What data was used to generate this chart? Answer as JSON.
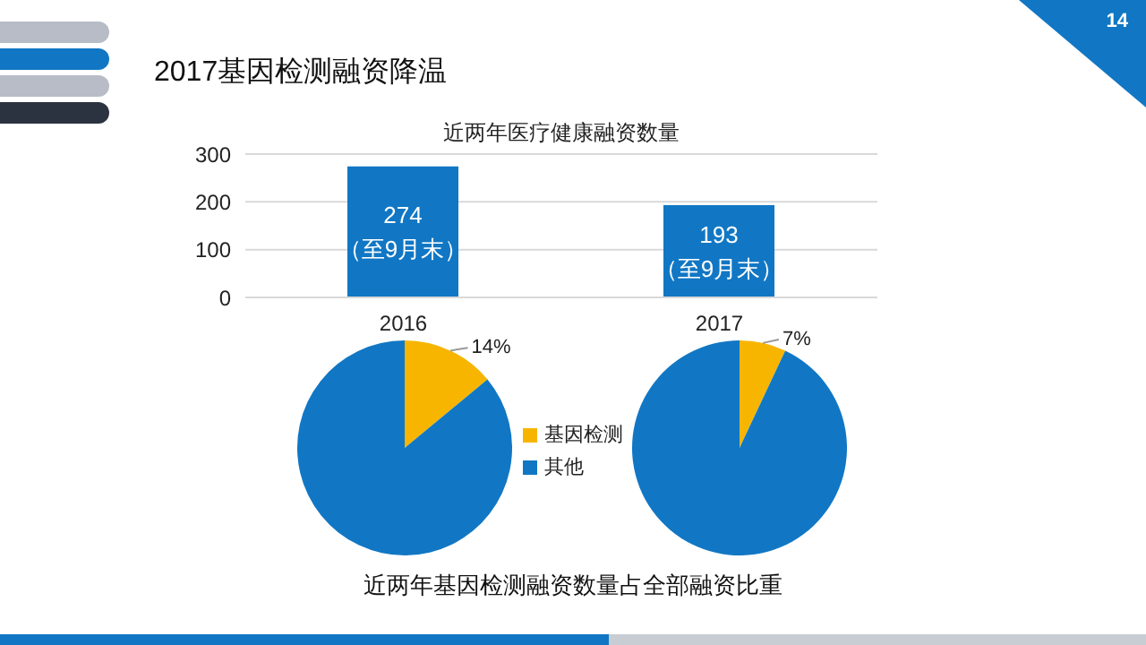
{
  "chart_data": [
    {
      "type": "bar",
      "title": "2017基因检测融资降温",
      "subtitle": "近两年医疗健康融资数量",
      "categories": [
        "2016",
        "2017"
      ],
      "values": [
        274,
        193
      ],
      "color": "#1177c4",
      "ylim": [
        0,
        300
      ],
      "yticks": [
        0,
        100,
        200,
        300
      ],
      "grid": "y",
      "value_labels": [
        "274\n（至9月末）",
        "193\n（至9月末）"
      ],
      "annotations": [
        "14"
      ]
    },
    {
      "type": "pie",
      "categories": [
        "基因检测",
        "其他"
      ],
      "colors": [
        "#f7b500",
        "#1177c4"
      ],
      "legend": "right",
      "annotations": [
        "近两年基因检测融资数量占全部融资比重"
      ],
      "series": [
        {
          "values": [
            14,
            86
          ],
          "value_labels": [
            "14%",
            null
          ]
        },
        {
          "values": [
            7,
            93
          ],
          "value_labels": [
            "7%",
            null
          ]
        }
      ]
    }
  ]
}
